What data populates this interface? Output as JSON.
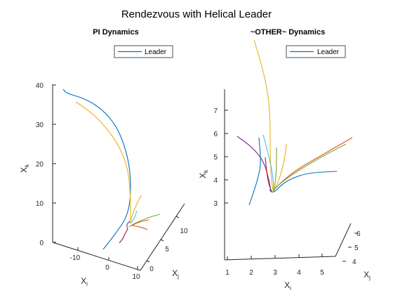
{
  "figure": {
    "title": "Rendezvous with Helical Leader"
  },
  "chart_data": [
    {
      "type": "line",
      "subtitle": "PI Dynamics",
      "xlabel": "X",
      "xlabel_sub": "i",
      "ylabel": "X",
      "ylabel_sub": "j",
      "zlabel": "X",
      "zlabel_sub": "k",
      "xticks": [
        "-10",
        "0",
        "10"
      ],
      "yticks": [
        "0",
        "5",
        "10"
      ],
      "zticks": [
        "0",
        "10",
        "20",
        "30",
        "40"
      ],
      "legend": {
        "label": "Leader",
        "position": "top-right"
      },
      "series": [
        {
          "name": "Leader",
          "color": "#0072BD",
          "points": [
            [
              90,
              127
            ],
            [
              95,
              133
            ],
            [
              120,
              140
            ],
            [
              145,
              155
            ],
            [
              165,
              178
            ],
            [
              178,
              208
            ],
            [
              186,
              245
            ],
            [
              186,
              285
            ],
            [
              180,
              310
            ],
            [
              168,
              328
            ],
            [
              155,
              345
            ],
            [
              147,
              355
            ]
          ]
        },
        {
          "color": "#EDB120",
          "points": [
            [
              108,
              145
            ],
            [
              130,
              160
            ],
            [
              150,
              180
            ],
            [
              168,
              205
            ],
            [
              180,
              232
            ],
            [
              185,
              262
            ],
            [
              186,
              292
            ],
            [
              186,
              318
            ]
          ]
        },
        {
          "color": "#EDB120",
          "points": [
            [
              201,
              278
            ],
            [
              195,
              290
            ],
            [
              189,
              305
            ],
            [
              185,
              318
            ]
          ]
        },
        {
          "color": "#77AC30",
          "points": [
            [
              228,
              305
            ],
            [
              210,
              310
            ],
            [
              192,
              318
            ],
            [
              184,
              323
            ]
          ]
        },
        {
          "color": "#A2142F",
          "points": [
            [
              170,
              346
            ],
            [
              175,
              340
            ],
            [
              178,
              333
            ],
            [
              182,
              326
            ]
          ]
        },
        {
          "color": "#D95319",
          "points": [
            [
              212,
              313
            ],
            [
              198,
              316
            ],
            [
              188,
              321
            ]
          ]
        },
        {
          "color": "#D95319",
          "points": [
            [
              210,
              327
            ],
            [
              200,
              323
            ],
            [
              188,
              321
            ]
          ]
        },
        {
          "color": "#7E2F8E",
          "points": [
            [
              182,
              326
            ],
            [
              180,
              320
            ],
            [
              185,
              315
            ]
          ]
        },
        {
          "color": "#4DBEEE",
          "points": [
            [
              195,
              300
            ],
            [
              192,
              310
            ],
            [
              186,
              318
            ]
          ]
        }
      ]
    },
    {
      "type": "line",
      "subtitle": "~OTHER~ Dynamics",
      "xlabel": "X",
      "xlabel_sub": "i",
      "ylabel": "X",
      "ylabel_sub": "j",
      "zlabel": "X",
      "zlabel_sub": "k",
      "xticks": [
        "1",
        "2",
        "3",
        "4",
        "5"
      ],
      "yticks": [
        "4",
        "5",
        "6"
      ],
      "zticks": [
        "3",
        "4",
        "5",
        "6",
        "7"
      ],
      "legend": {
        "label": "Leader",
        "position": "top-right"
      },
      "series": [
        {
          "name": "Leader",
          "color": "#0072BD",
          "points": [
            [
              480,
              244
            ],
            [
              440,
              246
            ],
            [
              415,
              254
            ],
            [
              400,
              264
            ],
            [
              393,
              272
            ],
            [
              387,
              274
            ],
            [
              384,
              270
            ]
          ]
        },
        {
          "color": "#0072BD",
          "points": [
            [
              355,
              292
            ],
            [
              362,
              272
            ],
            [
              368,
              252
            ],
            [
              372,
              232
            ],
            [
              369,
              196
            ]
          ]
        },
        {
          "color": "#EDB120",
          "points": [
            [
              362,
              57
            ],
            [
              375,
              100
            ],
            [
              383,
              140
            ],
            [
              385,
              178
            ],
            [
              385,
              212
            ],
            [
              386,
              248
            ],
            [
              389,
              272
            ]
          ]
        },
        {
          "color": "#EDB120",
          "points": [
            [
              408,
              205
            ],
            [
              405,
              230
            ],
            [
              398,
              255
            ],
            [
              392,
              268
            ]
          ]
        },
        {
          "color": "#D95319",
          "points": [
            [
              502,
              196
            ],
            [
              460,
              220
            ],
            [
              422,
              242
            ],
            [
              400,
              260
            ],
            [
              389,
              272
            ]
          ]
        },
        {
          "color": "#77AC30",
          "points": [
            [
              493,
              205
            ],
            [
              455,
              225
            ],
            [
              420,
              246
            ],
            [
              398,
              262
            ],
            [
              389,
              272
            ]
          ]
        },
        {
          "color": "#7E2F8E",
          "points": [
            [
              338,
              194
            ],
            [
              360,
              210
            ],
            [
              376,
              230
            ],
            [
              383,
              255
            ],
            [
              386,
              272
            ]
          ]
        },
        {
          "color": "#A2142F",
          "points": [
            [
              378,
              224
            ],
            [
              380,
              245
            ],
            [
              383,
              262
            ],
            [
              387,
              273
            ]
          ]
        },
        {
          "color": "#4DBEEE",
          "points": [
            [
              375,
              192
            ],
            [
              383,
              222
            ],
            [
              389,
              250
            ],
            [
              390,
              270
            ]
          ]
        },
        {
          "color": "#77AC30",
          "points": [
            [
              394,
              210
            ],
            [
              394,
              240
            ],
            [
              392,
              262
            ],
            [
              390,
              272
            ]
          ]
        }
      ]
    }
  ]
}
